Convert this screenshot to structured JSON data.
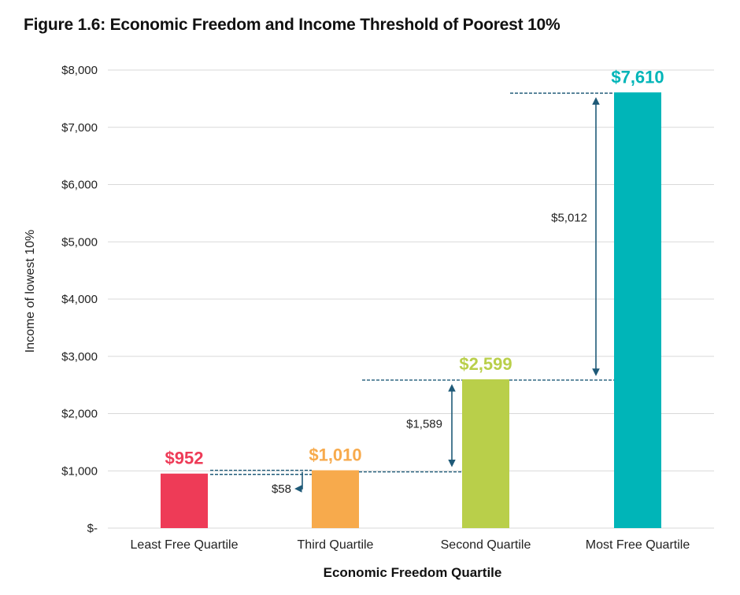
{
  "title": "Figure 1.6: Economic Freedom and Income Threshold of Poorest 10%",
  "chart_data": {
    "type": "bar",
    "title": "Figure 1.6: Economic Freedom and Income Threshold of Poorest 10%",
    "xlabel": "Economic Freedom Quartile",
    "ylabel": "Income of lowest 10%",
    "categories": [
      "Least Free Quartile",
      "Third Quartile",
      "Second Quartile",
      "Most Free Quartile"
    ],
    "values": [
      952,
      1010,
      2599,
      7610
    ],
    "value_labels": [
      "$952",
      "$1,010",
      "$2,599",
      "$7,610"
    ],
    "colors": [
      "#ee3b57",
      "#f7aa4c",
      "#b9cf4a",
      "#00b5b8"
    ],
    "ylim": [
      0,
      8000
    ],
    "yticks": [
      0,
      1000,
      2000,
      3000,
      4000,
      5000,
      6000,
      7000,
      8000
    ],
    "ytick_labels": [
      "$-",
      "$1,000",
      "$2,000",
      "$3,000",
      "$4,000",
      "$5,000",
      "$6,000",
      "$7,000",
      "$8,000"
    ],
    "grid": true,
    "differences": [
      {
        "from": 0,
        "to": 1,
        "label": "$58"
      },
      {
        "from": 1,
        "to": 2,
        "label": "$1,589"
      },
      {
        "from": 2,
        "to": 3,
        "label": "$5,012"
      }
    ],
    "accent_line_color": "#1f5a78"
  }
}
